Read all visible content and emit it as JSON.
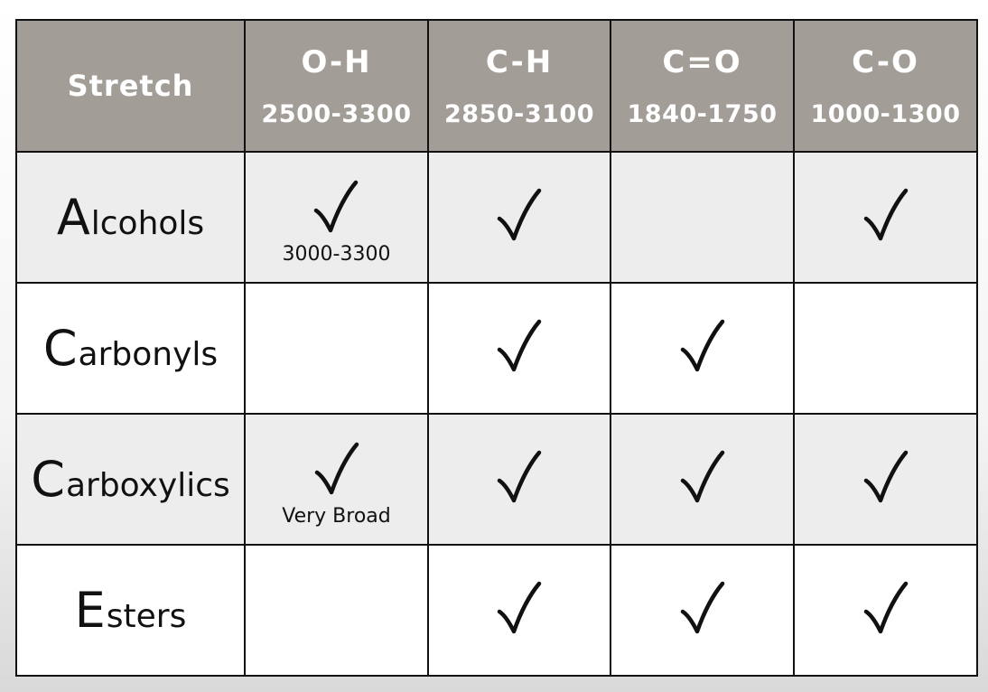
{
  "header": {
    "stretch_label": "Stretch",
    "columns": [
      {
        "bond": "O-H",
        "range": "2500-3300"
      },
      {
        "bond": "C-H",
        "range": "2850-3100"
      },
      {
        "bond": "C=O",
        "range": "1840-1750"
      },
      {
        "bond": "C-O",
        "range": "1000-1300"
      }
    ]
  },
  "rows": [
    {
      "initial": "A",
      "rest": "lcohols",
      "checks": [
        true,
        true,
        false,
        true
      ],
      "notes": [
        "3000-3300",
        "",
        "",
        ""
      ]
    },
    {
      "initial": "C",
      "rest": "arbonyls",
      "checks": [
        false,
        true,
        true,
        false
      ],
      "notes": [
        "",
        "",
        "",
        ""
      ]
    },
    {
      "initial": "C",
      "rest": "arboxylics",
      "checks": [
        true,
        true,
        true,
        true
      ],
      "notes": [
        "Very Broad",
        "",
        "",
        ""
      ]
    },
    {
      "initial": "E",
      "rest": "sters",
      "checks": [
        false,
        true,
        true,
        true
      ],
      "notes": [
        "",
        "",
        "",
        ""
      ]
    }
  ],
  "icons": {
    "check": "checkmark-icon"
  }
}
